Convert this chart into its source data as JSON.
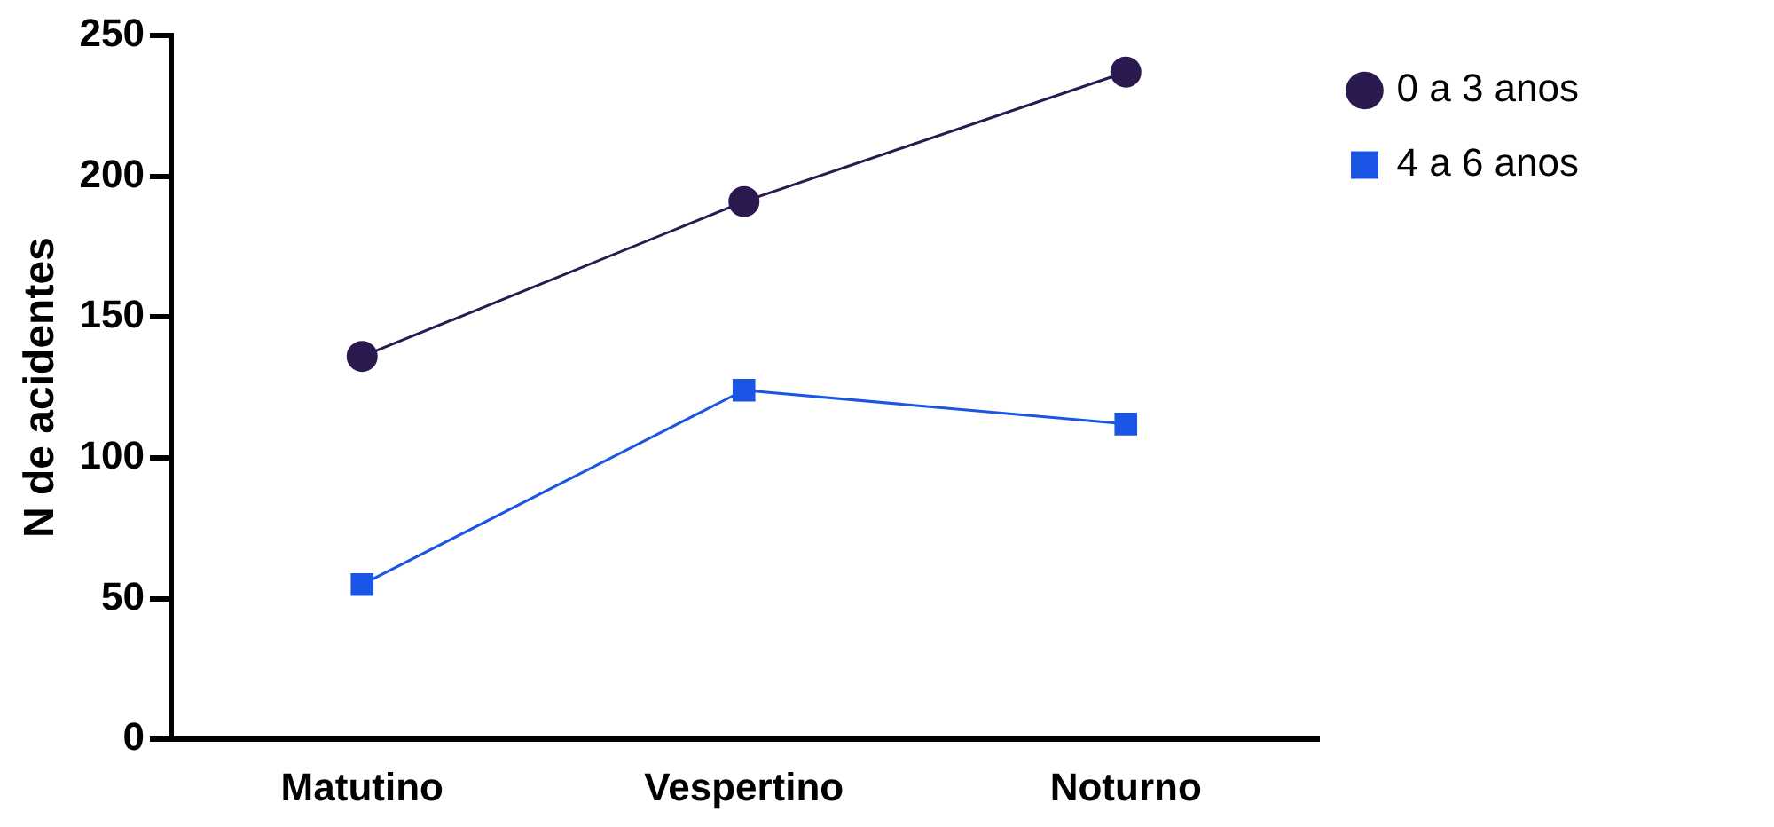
{
  "chart_data": {
    "type": "line",
    "ylabel": "N de acidentes",
    "categories": [
      "Matutino",
      "Vespertino",
      "Noturno"
    ],
    "series": [
      {
        "name": "0 a 3 anos",
        "color": "#2b1a50",
        "marker": "circle",
        "values": [
          136,
          191,
          237
        ]
      },
      {
        "name": "4 a 6 anos",
        "color": "#1a55e6",
        "marker": "square",
        "values": [
          55,
          124,
          112
        ]
      }
    ],
    "ylim": [
      0,
      250
    ],
    "yticks": [
      0,
      50,
      100,
      150,
      200,
      250
    ],
    "grid": false,
    "legend": "top right",
    "line_style": "solid"
  }
}
